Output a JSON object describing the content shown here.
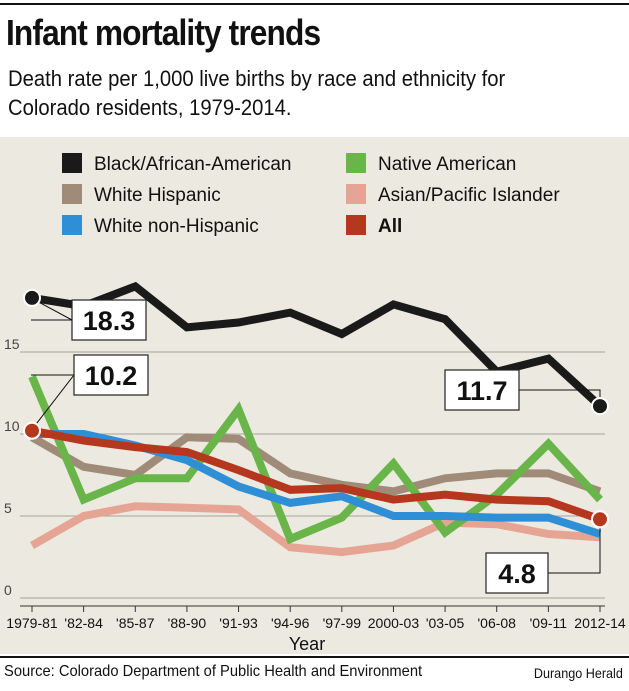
{
  "header": {
    "title": "Infant mortality trends",
    "subtitle": "Death rate per 1,000 live births by race and ethnicity for Colorado residents, 1979-2014."
  },
  "footer": {
    "source": "Source: Colorado Department of Public Health and Environment",
    "credit": "Durango Herald"
  },
  "chart_data": {
    "type": "line",
    "title": "Infant mortality trends",
    "xlabel": "Year",
    "ylabel": "",
    "ylim": [
      0,
      19.5
    ],
    "yticks": [
      0,
      5,
      10,
      15
    ],
    "grid": true,
    "legend_position": "top",
    "categories": [
      "1979-81",
      "'82-84",
      "'85-87",
      "'88-90",
      "'91-93",
      "'94-96",
      "'97-99",
      "2000-03",
      "'03-05",
      "'06-08",
      "'09-11",
      "2012-14"
    ],
    "series": [
      {
        "name": "Black/African-American",
        "color": "#1a1a1a",
        "bold": false,
        "values": [
          18.3,
          17.8,
          19.0,
          16.5,
          16.8,
          17.4,
          16.1,
          17.9,
          17.0,
          13.8,
          14.6,
          11.7
        ]
      },
      {
        "name": "White Hispanic",
        "color": "#a08b79",
        "bold": false,
        "values": [
          9.8,
          8.0,
          7.5,
          9.8,
          9.7,
          7.6,
          6.9,
          6.5,
          7.3,
          7.6,
          7.6,
          6.5
        ]
      },
      {
        "name": "White non-Hispanic",
        "color": "#2e8fd6",
        "bold": false,
        "values": [
          10.0,
          10.0,
          9.3,
          8.4,
          6.8,
          5.8,
          6.2,
          5.0,
          5.0,
          4.9,
          4.9,
          3.9
        ]
      },
      {
        "name": "Native American",
        "color": "#6ab54a",
        "bold": false,
        "values": [
          13.5,
          6.0,
          7.3,
          7.3,
          11.5,
          3.6,
          4.9,
          8.2,
          4.0,
          6.3,
          9.4,
          6.0
        ]
      },
      {
        "name": "Asian/Pacific Islander",
        "color": "#e6a594",
        "bold": false,
        "values": [
          3.2,
          5.0,
          5.6,
          5.5,
          5.4,
          3.1,
          2.8,
          3.2,
          4.6,
          4.5,
          3.9,
          3.7
        ]
      },
      {
        "name": "All",
        "color": "#b5371e",
        "bold": true,
        "values": [
          10.2,
          9.6,
          9.2,
          8.9,
          7.8,
          6.6,
          6.7,
          6.0,
          6.3,
          6.0,
          5.9,
          4.8
        ]
      }
    ],
    "callouts": [
      {
        "text": "18.3",
        "series": "Black/African-American",
        "category": "1979-81"
      },
      {
        "text": "10.2",
        "series": "All",
        "category": "1979-81"
      },
      {
        "text": "11.7",
        "series": "Black/African-American",
        "category": "2012-14"
      },
      {
        "text": "4.8",
        "series": "All",
        "category": "2012-14"
      }
    ]
  }
}
